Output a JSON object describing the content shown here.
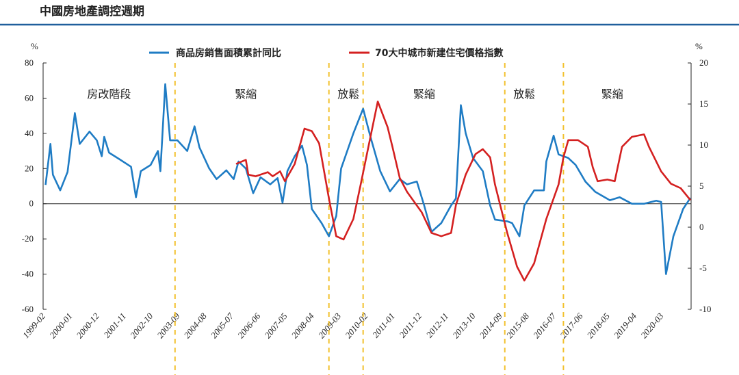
{
  "chart_data": {
    "type": "line",
    "title": "中國房地產調控週期",
    "left_unit": "%",
    "right_unit": "%",
    "ylim_left": [
      -60,
      80
    ],
    "yticks_left": [
      80,
      60,
      40,
      20,
      0,
      -20,
      -40,
      -60
    ],
    "ylim_right": [
      -10,
      20
    ],
    "yticks_right": [
      20,
      15,
      10,
      5,
      0,
      -5,
      -10
    ],
    "x_ticks": [
      "1999-02",
      "2000-01",
      "2000-12",
      "2001-11",
      "2002-10",
      "2003-09",
      "2004-08",
      "2005-07",
      "2006-06",
      "2007-05",
      "2008-04",
      "2009-03",
      "2010-02",
      "2011-01",
      "2011-12",
      "2012-11",
      "2013-10",
      "2014-09",
      "2015-08",
      "2016-07",
      "2017-06",
      "2018-05",
      "2019-04",
      "2020-03"
    ],
    "legend_placement": "top",
    "grid": false,
    "series": [
      {
        "name": "商品房銷售面積累計同比",
        "axis": "left",
        "color": "#1f7cc4",
        "points": [
          [
            "1999-03",
            10.7
          ],
          [
            "1999-05",
            34
          ],
          [
            "1999-06",
            16.5
          ],
          [
            "1999-09",
            7.6
          ],
          [
            "1999-12",
            18
          ],
          [
            "2000-03",
            51.5
          ],
          [
            "2000-05",
            34
          ],
          [
            "2000-09",
            41
          ],
          [
            "2000-12",
            36
          ],
          [
            "2001-02",
            27
          ],
          [
            "2001-03",
            38
          ],
          [
            "2001-05",
            29
          ],
          [
            "2001-09",
            25.5
          ],
          [
            "2002-02",
            21
          ],
          [
            "2002-04",
            3.7
          ],
          [
            "2002-06",
            18.5
          ],
          [
            "2002-10",
            22
          ],
          [
            "2003-01",
            30
          ],
          [
            "2003-02",
            18.5
          ],
          [
            "2003-04",
            68
          ],
          [
            "2003-06",
            36
          ],
          [
            "2003-09",
            36
          ],
          [
            "2004-01",
            30
          ],
          [
            "2004-04",
            44
          ],
          [
            "2004-06",
            32
          ],
          [
            "2004-10",
            20
          ],
          [
            "2005-01",
            14
          ],
          [
            "2005-05",
            19
          ],
          [
            "2005-08",
            14
          ],
          [
            "2005-10",
            24
          ],
          [
            "2006-01",
            20
          ],
          [
            "2006-04",
            6
          ],
          [
            "2006-07",
            15
          ],
          [
            "2006-11",
            11
          ],
          [
            "2007-02",
            14.6
          ],
          [
            "2007-04",
            0.6
          ],
          [
            "2007-06",
            18.5
          ],
          [
            "2007-09",
            27
          ],
          [
            "2007-12",
            33
          ],
          [
            "2008-02",
            22
          ],
          [
            "2008-04",
            -3
          ],
          [
            "2008-08",
            -11
          ],
          [
            "2008-11",
            -18.5
          ],
          [
            "2009-02",
            -7
          ],
          [
            "2009-04",
            20
          ],
          [
            "2009-09",
            40
          ],
          [
            "2010-01",
            54
          ],
          [
            "2010-04",
            38
          ],
          [
            "2010-08",
            18.5
          ],
          [
            "2010-12",
            7
          ],
          [
            "2011-04",
            14
          ],
          [
            "2011-07",
            11
          ],
          [
            "2011-11",
            12.6
          ],
          [
            "2012-02",
            -1
          ],
          [
            "2012-05",
            -16
          ],
          [
            "2012-09",
            -11
          ],
          [
            "2013-01",
            -1
          ],
          [
            "2013-03",
            3
          ],
          [
            "2013-05",
            56
          ],
          [
            "2013-07",
            40
          ],
          [
            "2013-10",
            26
          ],
          [
            "2014-02",
            18.5
          ],
          [
            "2014-05",
            -1
          ],
          [
            "2014-07",
            -9
          ],
          [
            "2014-12",
            -10
          ],
          [
            "2015-02",
            -11
          ],
          [
            "2015-05",
            -18.5
          ],
          [
            "2015-07",
            -1
          ],
          [
            "2015-11",
            7.6
          ],
          [
            "2016-03",
            7.6
          ],
          [
            "2016-04",
            24
          ],
          [
            "2016-07",
            38.7
          ],
          [
            "2016-09",
            28
          ],
          [
            "2017-01",
            26
          ],
          [
            "2017-04",
            22
          ],
          [
            "2017-08",
            12.6
          ],
          [
            "2017-12",
            6.8
          ],
          [
            "2018-06",
            2
          ],
          [
            "2018-10",
            3.7
          ],
          [
            "2019-03",
            0
          ],
          [
            "2019-08",
            0
          ],
          [
            "2020-01",
            1.7
          ],
          [
            "2020-03",
            1
          ],
          [
            "2020-05",
            -40
          ],
          [
            "2020-08",
            -18.5
          ],
          [
            "2020-12",
            -3
          ],
          [
            "2021-03",
            3.3
          ]
        ]
      },
      {
        "name": "70大中城市新建住宅價格指數",
        "axis": "right",
        "color": "#d42020",
        "points": [
          [
            "2005-09",
            7.7
          ],
          [
            "2006-01",
            8.2
          ],
          [
            "2006-02",
            6.4
          ],
          [
            "2006-05",
            6.2
          ],
          [
            "2006-10",
            6.7
          ],
          [
            "2006-12",
            6.2
          ],
          [
            "2007-03",
            6.8
          ],
          [
            "2007-05",
            5.6
          ],
          [
            "2007-09",
            7.7
          ],
          [
            "2008-01",
            12
          ],
          [
            "2008-04",
            11.7
          ],
          [
            "2008-07",
            10.2
          ],
          [
            "2008-11",
            3.5
          ],
          [
            "2009-02",
            -1.1
          ],
          [
            "2009-05",
            -1.5
          ],
          [
            "2009-09",
            1
          ],
          [
            "2009-12",
            5.2
          ],
          [
            "2010-04",
            11
          ],
          [
            "2010-07",
            15.3
          ],
          [
            "2010-11",
            12.2
          ],
          [
            "2011-01",
            9.8
          ],
          [
            "2011-04",
            6
          ],
          [
            "2011-07",
            4.3
          ],
          [
            "2012-01",
            1.8
          ],
          [
            "2012-05",
            -0.7
          ],
          [
            "2012-09",
            -1.1
          ],
          [
            "2013-01",
            -0.7
          ],
          [
            "2013-03",
            2.7
          ],
          [
            "2013-07",
            6.4
          ],
          [
            "2013-11",
            8.9
          ],
          [
            "2014-02",
            9.5
          ],
          [
            "2014-05",
            8.5
          ],
          [
            "2014-07",
            5.2
          ],
          [
            "2014-12",
            -0.7
          ],
          [
            "2015-04",
            -4.8
          ],
          [
            "2015-07",
            -6.5
          ],
          [
            "2015-11",
            -4.4
          ],
          [
            "2016-04",
            1
          ],
          [
            "2016-09",
            5.2
          ],
          [
            "2016-11",
            8.5
          ],
          [
            "2017-01",
            10.6
          ],
          [
            "2017-05",
            10.6
          ],
          [
            "2017-09",
            9.8
          ],
          [
            "2017-11",
            7.3
          ],
          [
            "2018-01",
            5.6
          ],
          [
            "2018-05",
            5.8
          ],
          [
            "2018-08",
            5.6
          ],
          [
            "2018-11",
            9.8
          ],
          [
            "2019-03",
            11
          ],
          [
            "2019-08",
            11.3
          ],
          [
            "2019-10",
            9.8
          ],
          [
            "2020-03",
            6.8
          ],
          [
            "2020-07",
            5.3
          ],
          [
            "2020-11",
            4.75
          ],
          [
            "2021-03",
            3.3
          ]
        ]
      }
    ],
    "policy_boundaries": [
      "2003-08",
      "2008-11",
      "2010-01",
      "2014-11",
      "2016-11"
    ],
    "boundary_color": "#f2c12e",
    "phases": [
      {
        "label": "房改階段",
        "date": "2001-05"
      },
      {
        "label": "緊縮",
        "date": "2006-01"
      },
      {
        "label": "放鬆",
        "date": "2009-07"
      },
      {
        "label": "緊縮",
        "date": "2012-02"
      },
      {
        "label": "放鬆",
        "date": "2015-07"
      },
      {
        "label": "緊縮",
        "date": "2018-07"
      }
    ]
  }
}
